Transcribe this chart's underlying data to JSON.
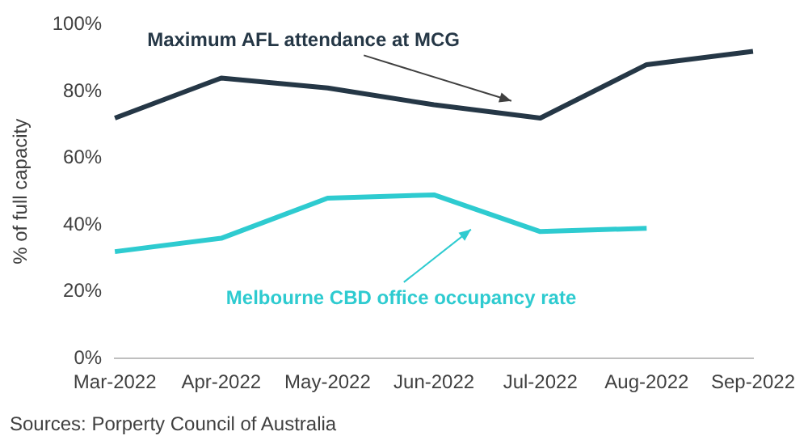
{
  "chart_data": {
    "type": "line",
    "ylabel": "% of full capacity",
    "categories": [
      "Mar-2022",
      "Apr-2022",
      "May-2022",
      "Jun-2022",
      "Jul-2022",
      "Aug-2022",
      "Sep-2022"
    ],
    "series": [
      {
        "name": "Maximum AFL attendance at MCG",
        "color": "#253746",
        "values": [
          72,
          84,
          81,
          76,
          72,
          88,
          92
        ]
      },
      {
        "name": "Melbourne CBD office occupancy rate",
        "color": "#2ecbd0",
        "values": [
          32,
          36,
          48,
          49,
          38,
          39,
          null
        ]
      }
    ],
    "ylim": [
      0,
      100
    ],
    "yticks": [
      {
        "value": 0,
        "label": "0%"
      },
      {
        "value": 20,
        "label": "20%"
      },
      {
        "value": 40,
        "label": "40%"
      },
      {
        "value": 60,
        "label": "60%"
      },
      {
        "value": 80,
        "label": "80%"
      },
      {
        "value": 100,
        "label": "100%"
      }
    ],
    "grid": false,
    "legend": false,
    "marker": "none",
    "line_style": "solid",
    "annotations": [
      "Sources: Porperty Council of Australia"
    ]
  }
}
